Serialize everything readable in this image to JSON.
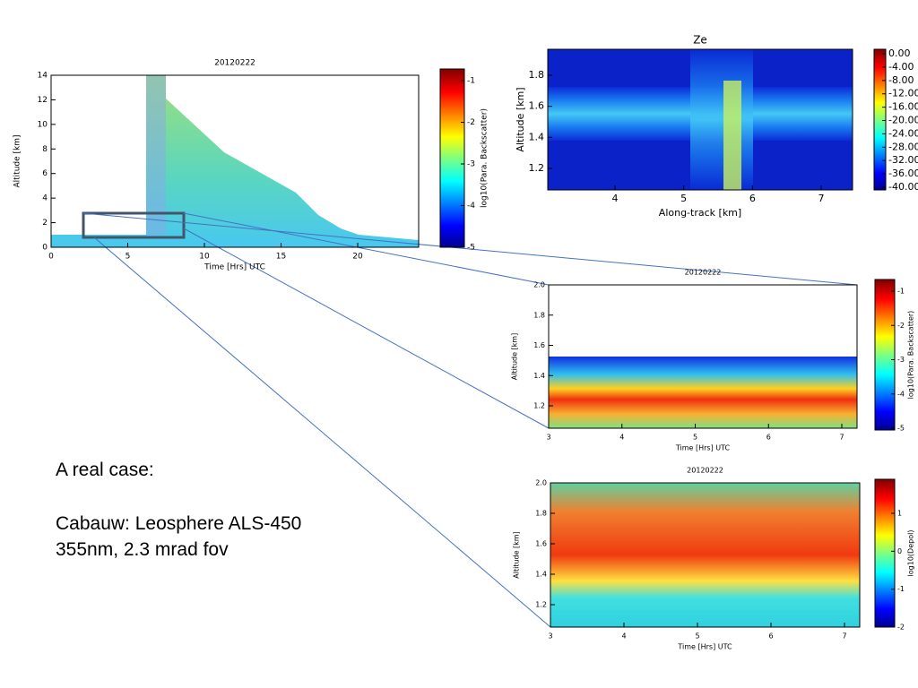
{
  "panels": [
    {
      "title": "20120222",
      "x_label": "Time [Hrs] UTC",
      "y_label": "Altitude [km]",
      "x_ticks": [
        0,
        5,
        10,
        15,
        20
      ],
      "y_ticks": [
        0,
        2,
        4,
        6,
        8,
        10,
        12,
        14
      ],
      "colorbar": {
        "label": "log10(Para. Backscatter)",
        "ticks": [
          -1,
          -2,
          -3,
          -4,
          -5
        ]
      }
    },
    {
      "title": "Ze",
      "x_label": "Along-track [km]",
      "y_label": "Altitude [km]",
      "x_ticks": [
        4,
        5,
        6,
        7
      ],
      "y_ticks": [
        1.2,
        1.4,
        1.6,
        1.8
      ],
      "colorbar": {
        "label": "",
        "ticks": [
          "0.00",
          "-4.00",
          "-8.00",
          "-12.00",
          "-16.00",
          "-20.00",
          "-24.00",
          "-28.00",
          "-32.00",
          "-36.00",
          "-40.00"
        ]
      }
    },
    {
      "title": "20120222",
      "x_label": "Time [Hrs] UTC",
      "y_label": "Altitude [km]",
      "x_ticks": [
        3,
        4,
        5,
        6,
        7
      ],
      "y_ticks": [
        1.2,
        1.4,
        1.6,
        1.8,
        "2.0"
      ],
      "colorbar": {
        "label": "log10(Para. Backscatter)",
        "ticks": [
          -1,
          -2,
          -3,
          -4,
          -5
        ]
      }
    },
    {
      "title": "20120222",
      "x_label": "Time [Hrs] UTC",
      "y_label": "Altitude [km]",
      "x_ticks": [
        3,
        4,
        5,
        6,
        7
      ],
      "y_ticks": [
        1.2,
        1.4,
        1.6,
        1.8,
        "2.0"
      ],
      "colorbar": {
        "label": "log10(Depol)",
        "ticks": [
          1,
          0,
          -1,
          -2
        ]
      }
    }
  ],
  "notes": [
    "A real case:",
    "Cabauw: Leosphere ALS-450",
    "355nm, 2.3 mrad fov"
  ]
}
